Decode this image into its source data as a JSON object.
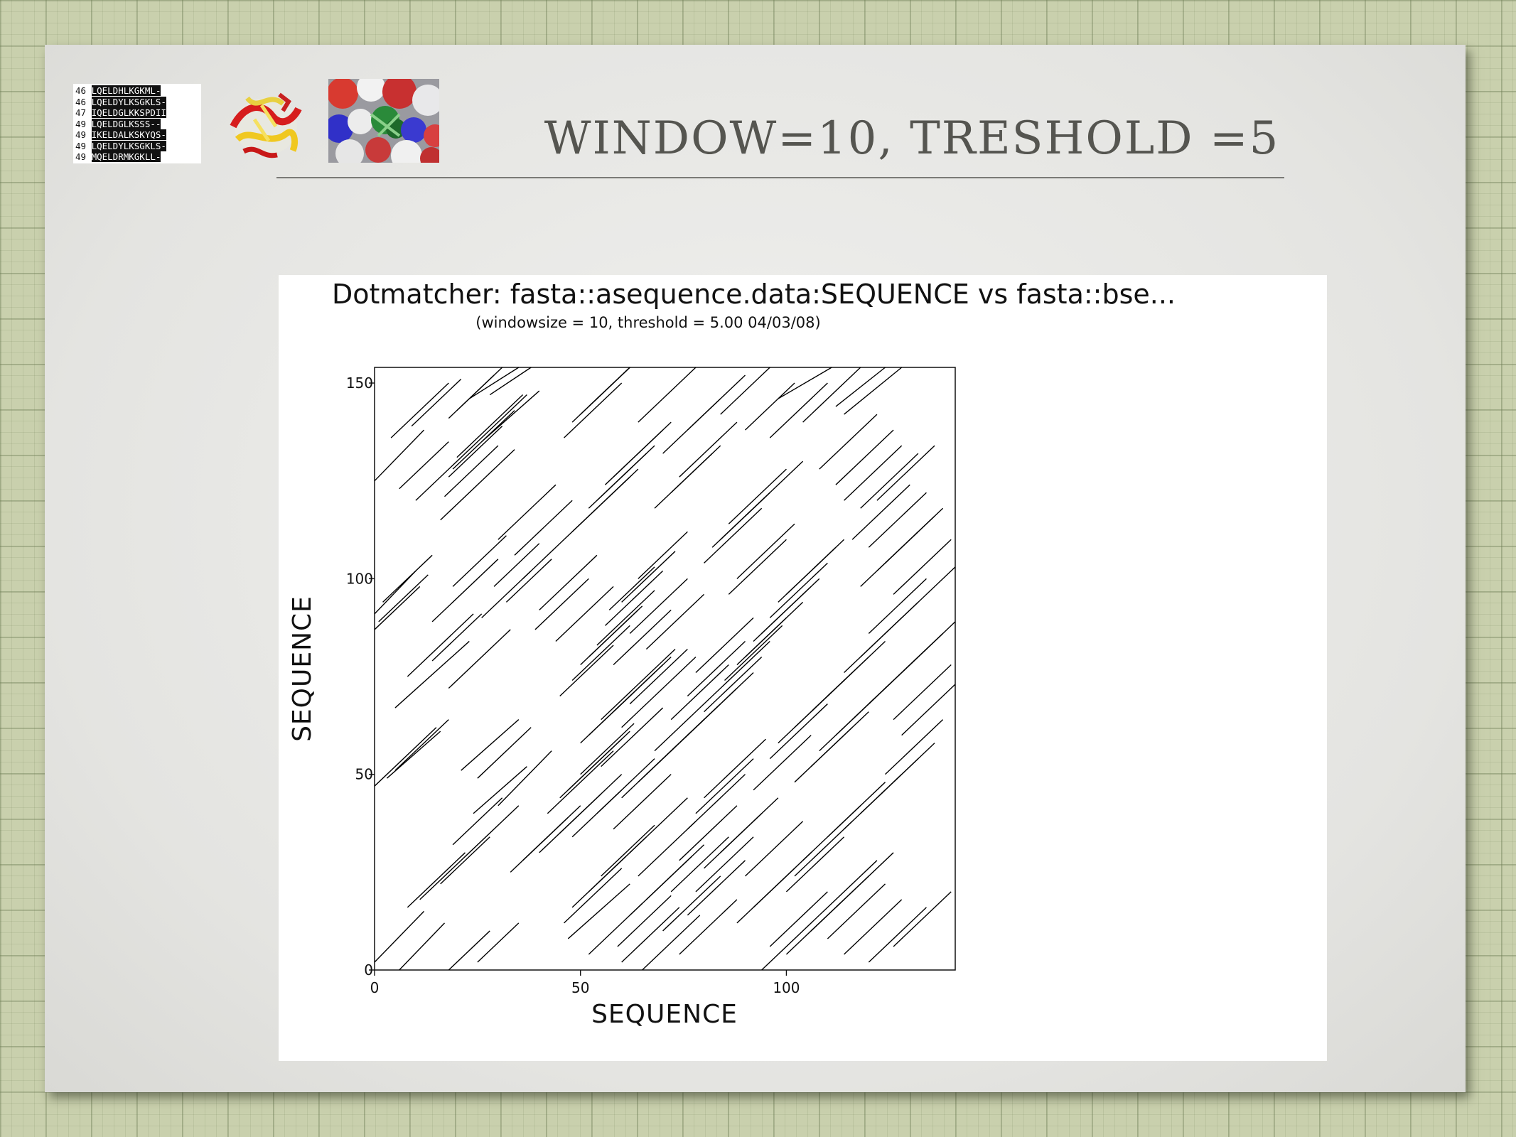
{
  "slide": {
    "title": "WINDOW=10, TRESHOLD =5"
  },
  "alignment_thumbnail": {
    "rows": [
      {
        "num": "46",
        "seq": "LQELDHLKGKML-"
      },
      {
        "num": "46",
        "seq": "LQELDYLKSGKLS-"
      },
      {
        "num": "47",
        "seq": "IQELDGLKKSPDII"
      },
      {
        "num": "49",
        "seq": "LQELDGLKSSS--"
      },
      {
        "num": "49",
        "seq": "IKELDALKSKYQS-"
      },
      {
        "num": "49",
        "seq": "LQELDYLKSGKLS-"
      },
      {
        "num": "49",
        "seq": "MQELDRMKGKLL-"
      }
    ]
  },
  "colors": {
    "slide_title": "#555550",
    "plot_lines": "#000000",
    "background_grid": "#c9d0ad"
  },
  "chart_data": {
    "type": "scatter",
    "title": "Dotmatcher: fasta::asequence.data:SEQUENCE vs fasta::bse...",
    "subtitle": "(windowsize = 10, threshold = 5.00  04/03/08)",
    "xlabel": "SEQUENCE",
    "ylabel": "SEQUENCE",
    "xlim": [
      0,
      141
    ],
    "ylim": [
      0,
      154
    ],
    "xticks": [
      0,
      50,
      100
    ],
    "yticks": [
      0,
      50,
      100,
      150
    ],
    "grid": false,
    "legend": "none",
    "segments": [
      [
        0,
        2,
        12,
        15
      ],
      [
        6,
        0,
        17,
        12
      ],
      [
        18,
        0,
        28,
        10
      ],
      [
        25,
        2,
        35,
        12
      ],
      [
        16,
        22,
        28,
        34
      ],
      [
        8,
        16,
        22,
        30
      ],
      [
        11,
        18,
        23,
        30
      ],
      [
        19,
        32,
        31,
        44
      ],
      [
        23,
        30,
        35,
        42
      ],
      [
        24,
        40,
        37,
        52
      ],
      [
        30,
        42,
        43,
        56
      ],
      [
        21,
        51,
        35,
        64
      ],
      [
        25,
        49,
        38,
        62
      ],
      [
        0,
        47,
        15,
        62
      ],
      [
        3,
        49,
        16,
        61
      ],
      [
        5,
        51,
        18,
        64
      ],
      [
        5,
        67,
        23,
        84
      ],
      [
        8,
        75,
        24,
        91
      ],
      [
        14,
        79,
        26,
        91
      ],
      [
        14,
        89,
        30,
        105
      ],
      [
        26,
        90,
        38,
        102
      ],
      [
        18,
        72,
        33,
        87
      ],
      [
        0,
        87,
        11,
        98
      ],
      [
        1,
        89,
        13,
        101
      ],
      [
        0,
        91,
        10,
        102
      ],
      [
        2,
        94,
        14,
        106
      ],
      [
        19,
        98,
        32,
        111
      ],
      [
        16,
        115,
        34,
        133
      ],
      [
        10,
        120,
        24,
        134
      ],
      [
        6,
        123,
        18,
        135
      ],
      [
        0,
        125,
        12,
        138
      ],
      [
        17,
        121,
        30,
        134
      ],
      [
        18,
        126,
        31,
        139
      ],
      [
        19,
        128,
        34,
        143
      ],
      [
        20,
        131,
        36,
        147
      ],
      [
        24,
        134,
        37,
        147
      ],
      [
        26,
        135,
        40,
        148
      ],
      [
        4,
        136,
        18,
        150
      ],
      [
        9,
        139,
        21,
        151
      ],
      [
        18,
        141,
        29,
        152
      ],
      [
        20,
        143,
        31,
        154
      ],
      [
        23,
        146,
        35,
        154
      ],
      [
        28,
        147,
        38,
        155
      ],
      [
        29,
        98,
        40,
        109
      ],
      [
        32,
        94,
        43,
        105
      ],
      [
        39,
        87,
        52,
        100
      ],
      [
        45,
        70,
        58,
        83
      ],
      [
        48,
        74,
        62,
        88
      ],
      [
        50,
        78,
        64,
        92
      ],
      [
        52,
        80,
        65,
        93
      ],
      [
        54,
        83,
        68,
        97
      ],
      [
        56,
        88,
        70,
        102
      ],
      [
        57,
        92,
        68,
        103
      ],
      [
        60,
        94,
        73,
        107
      ],
      [
        64,
        100,
        76,
        112
      ],
      [
        50,
        58,
        70,
        78
      ],
      [
        52,
        60,
        68,
        76
      ],
      [
        55,
        64,
        73,
        82
      ],
      [
        58,
        66,
        72,
        80
      ],
      [
        60,
        62,
        78,
        80
      ],
      [
        62,
        68,
        76,
        82
      ],
      [
        42,
        40,
        58,
        56
      ],
      [
        45,
        44,
        60,
        59
      ],
      [
        47,
        46,
        62,
        61
      ],
      [
        50,
        50,
        63,
        63
      ],
      [
        55,
        52,
        70,
        67
      ],
      [
        33,
        25,
        47,
        39
      ],
      [
        36,
        28,
        50,
        42
      ],
      [
        40,
        30,
        55,
        45
      ],
      [
        45,
        35,
        60,
        50
      ],
      [
        48,
        34,
        60,
        46
      ],
      [
        46,
        12,
        60,
        26
      ],
      [
        48,
        16,
        61,
        29
      ],
      [
        52,
        20,
        66,
        34
      ],
      [
        55,
        24,
        68,
        37
      ],
      [
        47,
        8,
        62,
        22
      ],
      [
        52,
        4,
        65,
        17
      ],
      [
        59,
        6,
        72,
        19
      ],
      [
        62,
        14,
        77,
        29
      ],
      [
        60,
        2,
        74,
        16
      ],
      [
        65,
        0,
        79,
        14
      ],
      [
        70,
        10,
        84,
        24
      ],
      [
        72,
        20,
        86,
        34
      ],
      [
        74,
        28,
        88,
        42
      ],
      [
        76,
        36,
        90,
        50
      ],
      [
        78,
        40,
        92,
        54
      ],
      [
        80,
        44,
        95,
        59
      ],
      [
        66,
        50,
        80,
        64
      ],
      [
        70,
        54,
        84,
        68
      ],
      [
        74,
        58,
        88,
        72
      ],
      [
        78,
        62,
        92,
        76
      ],
      [
        80,
        66,
        94,
        80
      ],
      [
        82,
        70,
        96,
        84
      ],
      [
        85,
        74,
        99,
        88
      ],
      [
        88,
        78,
        100,
        90
      ],
      [
        90,
        80,
        104,
        94
      ],
      [
        92,
        84,
        106,
        98
      ],
      [
        94,
        86,
        108,
        100
      ],
      [
        96,
        90,
        110,
        104
      ],
      [
        98,
        94,
        112,
        108
      ],
      [
        100,
        96,
        114,
        110
      ],
      [
        86,
        96,
        100,
        110
      ],
      [
        88,
        100,
        102,
        114
      ],
      [
        80,
        104,
        94,
        118
      ],
      [
        82,
        108,
        96,
        122
      ],
      [
        84,
        110,
        96,
        122
      ],
      [
        86,
        114,
        100,
        128
      ],
      [
        90,
        116,
        104,
        130
      ],
      [
        68,
        118,
        82,
        132
      ],
      [
        72,
        122,
        84,
        134
      ],
      [
        74,
        126,
        88,
        140
      ],
      [
        48,
        112,
        62,
        126
      ],
      [
        50,
        114,
        64,
        128
      ],
      [
        52,
        118,
        66,
        132
      ],
      [
        54,
        120,
        68,
        134
      ],
      [
        56,
        124,
        70,
        138
      ],
      [
        58,
        126,
        72,
        140
      ],
      [
        46,
        136,
        60,
        150
      ],
      [
        48,
        140,
        62,
        154
      ],
      [
        50,
        142,
        62,
        154
      ],
      [
        52,
        144,
        62,
        154
      ],
      [
        64,
        140,
        78,
        154
      ],
      [
        70,
        132,
        84,
        146
      ],
      [
        76,
        138,
        90,
        152
      ],
      [
        84,
        142,
        96,
        154
      ],
      [
        90,
        138,
        102,
        150
      ],
      [
        96,
        136,
        110,
        150
      ],
      [
        98,
        146,
        111,
        156
      ],
      [
        104,
        140,
        118,
        154
      ],
      [
        112,
        144,
        124,
        154
      ],
      [
        114,
        142,
        128,
        156
      ],
      [
        108,
        128,
        122,
        142
      ],
      [
        112,
        124,
        126,
        138
      ],
      [
        114,
        120,
        128,
        134
      ],
      [
        118,
        118,
        132,
        132
      ],
      [
        122,
        120,
        136,
        134
      ],
      [
        116,
        110,
        130,
        124
      ],
      [
        120,
        108,
        134,
        122
      ],
      [
        118,
        98,
        132,
        112
      ],
      [
        122,
        102,
        136,
        116
      ],
      [
        124,
        104,
        138,
        118
      ],
      [
        126,
        96,
        140,
        110
      ],
      [
        128,
        90,
        141,
        103
      ],
      [
        120,
        86,
        134,
        100
      ],
      [
        118,
        80,
        132,
        94
      ],
      [
        114,
        76,
        128,
        90
      ],
      [
        110,
        70,
        124,
        84
      ],
      [
        106,
        66,
        120,
        80
      ],
      [
        102,
        62,
        116,
        76
      ],
      [
        98,
        58,
        112,
        72
      ],
      [
        96,
        54,
        110,
        68
      ],
      [
        92,
        46,
        106,
        60
      ],
      [
        102,
        48,
        116,
        62
      ],
      [
        106,
        52,
        120,
        66
      ],
      [
        108,
        56,
        122,
        70
      ],
      [
        112,
        60,
        126,
        74
      ],
      [
        116,
        64,
        130,
        78
      ],
      [
        120,
        68,
        134,
        82
      ],
      [
        124,
        72,
        138,
        86
      ],
      [
        128,
        76,
        141,
        89
      ],
      [
        126,
        64,
        140,
        78
      ],
      [
        128,
        60,
        141,
        73
      ],
      [
        110,
        34,
        124,
        48
      ],
      [
        114,
        36,
        128,
        50
      ],
      [
        118,
        40,
        132,
        54
      ],
      [
        122,
        44,
        136,
        58
      ],
      [
        124,
        50,
        138,
        64
      ],
      [
        100,
        20,
        114,
        34
      ],
      [
        102,
        24,
        116,
        38
      ],
      [
        104,
        28,
        118,
        42
      ],
      [
        106,
        10,
        120,
        24
      ],
      [
        108,
        14,
        122,
        28
      ],
      [
        110,
        8,
        124,
        22
      ],
      [
        112,
        16,
        126,
        30
      ],
      [
        114,
        4,
        128,
        18
      ],
      [
        120,
        2,
        134,
        16
      ],
      [
        126,
        6,
        140,
        20
      ],
      [
        94,
        0,
        108,
        14
      ],
      [
        100,
        4,
        114,
        18
      ],
      [
        96,
        6,
        110,
        20
      ],
      [
        88,
        12,
        102,
        26
      ],
      [
        92,
        16,
        106,
        30
      ],
      [
        90,
        24,
        104,
        38
      ],
      [
        84,
        30,
        98,
        44
      ],
      [
        80,
        26,
        94,
        40
      ],
      [
        78,
        20,
        92,
        34
      ],
      [
        76,
        14,
        90,
        28
      ],
      [
        74,
        4,
        88,
        18
      ],
      [
        66,
        18,
        80,
        32
      ],
      [
        64,
        24,
        78,
        38
      ],
      [
        62,
        30,
        76,
        44
      ],
      [
        58,
        36,
        72,
        50
      ],
      [
        54,
        40,
        68,
        54
      ],
      [
        60,
        44,
        74,
        58
      ],
      [
        64,
        48,
        78,
        62
      ],
      [
        68,
        56,
        82,
        70
      ],
      [
        72,
        64,
        86,
        78
      ],
      [
        76,
        70,
        90,
        84
      ],
      [
        78,
        76,
        92,
        90
      ],
      [
        66,
        82,
        80,
        96
      ],
      [
        62,
        86,
        76,
        100
      ],
      [
        58,
        78,
        72,
        92
      ],
      [
        44,
        84,
        58,
        98
      ],
      [
        40,
        92,
        54,
        106
      ],
      [
        36,
        100,
        50,
        114
      ],
      [
        34,
        106,
        48,
        120
      ],
      [
        30,
        110,
        44,
        124
      ]
    ]
  }
}
